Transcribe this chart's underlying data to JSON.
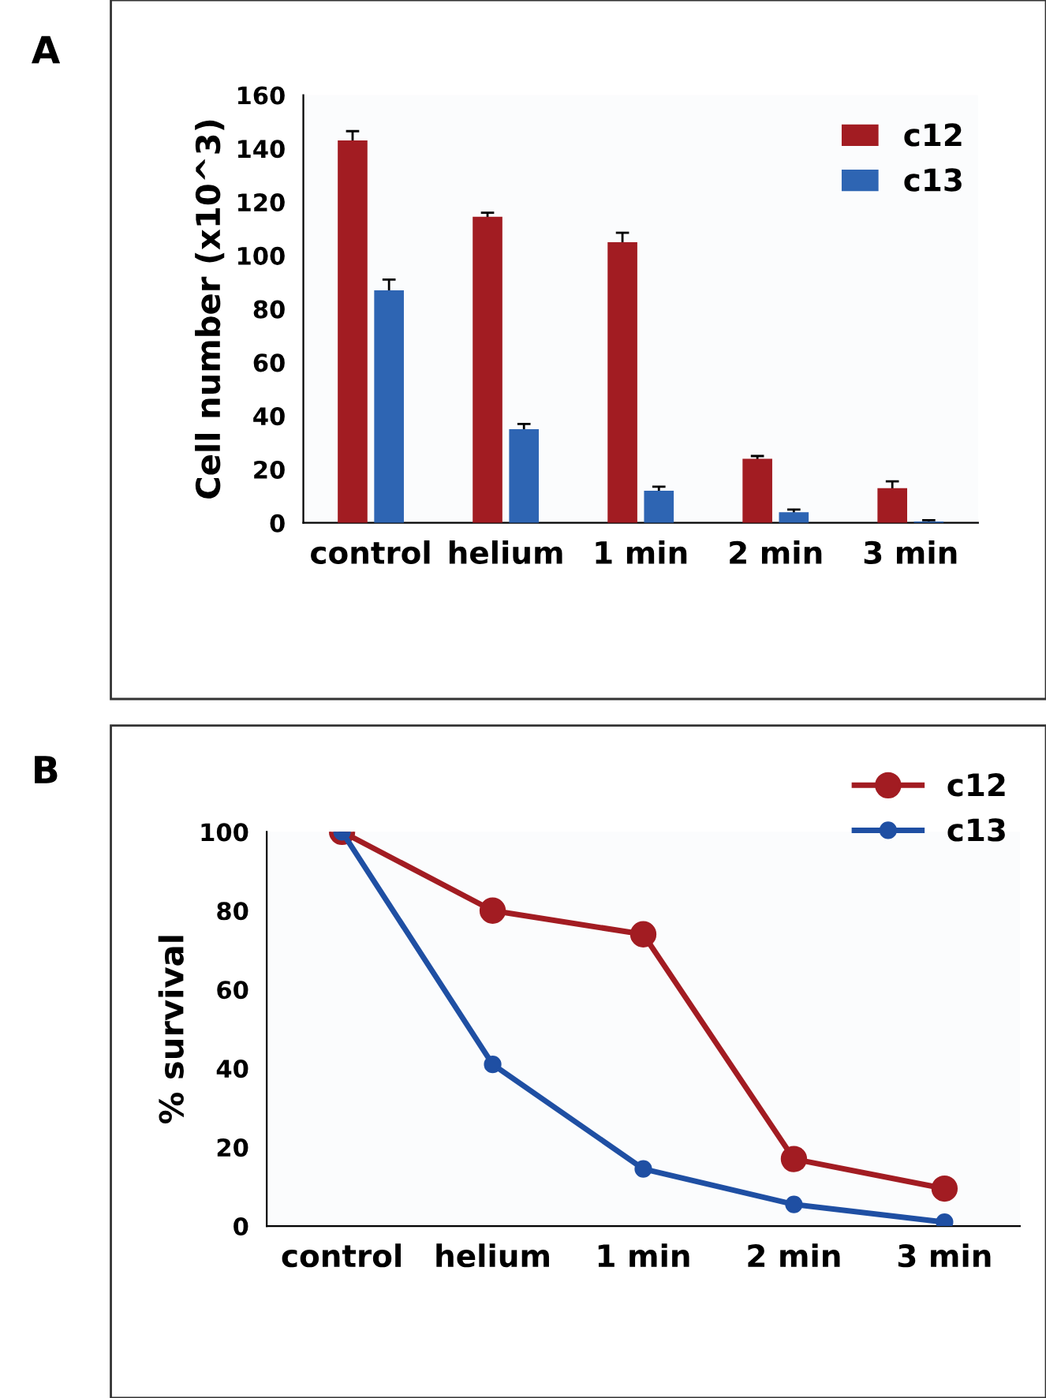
{
  "chart_data": [
    {
      "type": "bar",
      "ylabel": "Cell number (x10^3)",
      "annotations": [
        "A"
      ],
      "categories": [
        "control",
        "helium",
        "1 min",
        "2 min",
        "3 min"
      ],
      "series": [
        {
          "name": "c12",
          "color": "#a21c22",
          "values": [
            143,
            114.5,
            105,
            24,
            13
          ],
          "errors": [
            3.5,
            1.5,
            3.5,
            1,
            2.5
          ]
        },
        {
          "name": "c13",
          "color": "#2e65b3",
          "values": [
            87,
            35,
            12,
            4,
            0.5
          ],
          "errors": [
            4,
            2,
            1.5,
            1,
            0.5
          ]
        }
      ],
      "ylim": [
        0,
        160
      ],
      "yticks": [
        0,
        20,
        40,
        60,
        80,
        100,
        120,
        140,
        160
      ],
      "grid": false,
      "legend": "top right"
    },
    {
      "type": "line",
      "ylabel": "% survival",
      "annotations": [
        "B"
      ],
      "categories": [
        "control",
        "helium",
        "1 min",
        "2 min",
        "3 min"
      ],
      "series": [
        {
          "name": "c12",
          "color": "#a21c22",
          "values": [
            100,
            80,
            74,
            17,
            9.5
          ]
        },
        {
          "name": "c13",
          "color": "#1f4fa3",
          "values": [
            100,
            41,
            14.5,
            5.5,
            1
          ]
        }
      ],
      "ylim": [
        0,
        100
      ],
      "yticks": [
        0,
        20,
        40,
        60,
        80,
        100
      ],
      "grid": false,
      "legend": "top right",
      "marker": "circle",
      "line_style": "solid"
    }
  ]
}
